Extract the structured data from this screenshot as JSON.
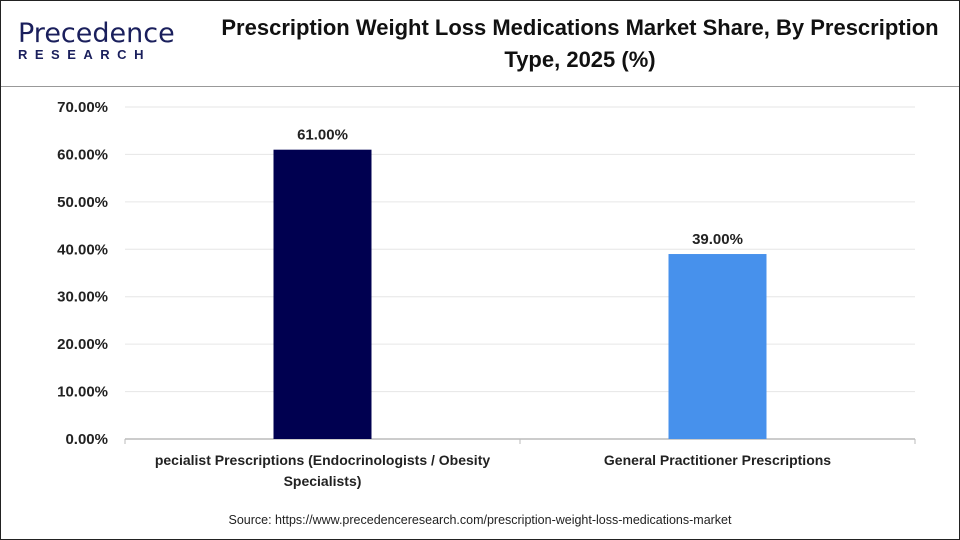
{
  "logo": {
    "text": "Precedence Research",
    "line1": "Precedence",
    "line2": "RESEARCH"
  },
  "title": "Prescription Weight Loss Medications Market Share, By Prescription Type, 2025 (%)",
  "source": "Source: https://www.precedenceresearch.com/prescription-weight-loss-medications-market",
  "chart_data": {
    "type": "bar",
    "title": "Prescription Weight Loss Medications Market Share, By Prescription Type, 2025 (%)",
    "categories": [
      "pecialist Prescriptions (Endocrinologists / Obesity Specialists)",
      "General Practitioner Prescriptions"
    ],
    "category_lines": [
      [
        "pecialist Prescriptions (Endocrinologists / Obesity",
        "Specialists)"
      ],
      [
        "General Practitioner Prescriptions"
      ]
    ],
    "values": [
      61.0,
      39.0
    ],
    "data_labels": [
      "61.00%",
      "39.00%"
    ],
    "colors": [
      "#000050",
      "#4791ec"
    ],
    "ylim": [
      0,
      70
    ],
    "yticks": [
      0,
      10,
      20,
      30,
      40,
      50,
      60,
      70
    ],
    "ytick_labels": [
      "0.00%",
      "10.00%",
      "20.00%",
      "30.00%",
      "40.00%",
      "50.00%",
      "60.00%",
      "70.00%"
    ],
    "grid": true,
    "legend": "none",
    "xlabel": "",
    "ylabel": ""
  }
}
